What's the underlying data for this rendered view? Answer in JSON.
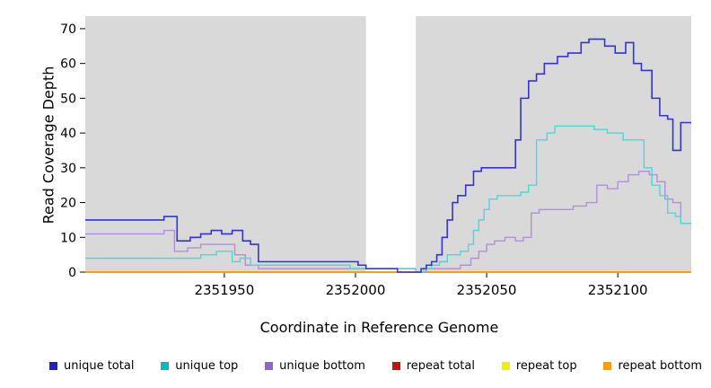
{
  "chart_data": {
    "type": "line",
    "title": "",
    "xlabel": "Coordinate in Reference Genome",
    "ylabel": "Read Coverage Depth",
    "x_range": [
      2351897,
      2352128
    ],
    "y_range": [
      0,
      73.6
    ],
    "x_ticks": [
      2351950,
      2352000,
      2352050,
      2352100
    ],
    "y_ticks": [
      0,
      10,
      20,
      30,
      40,
      50,
      60,
      70
    ],
    "plot_bg": "#d9d9d9",
    "gap_band": {
      "x0": 2352004,
      "x1": 2352023,
      "color": "#ffffff"
    },
    "grid": false,
    "legend_position": "bottom",
    "series": [
      {
        "name": "repeat total",
        "color": "#cc1111",
        "width": 1.5,
        "points": [
          [
            2351897,
            0
          ]
        ]
      },
      {
        "name": "repeat top",
        "color": "#f0f000",
        "width": 1.5,
        "points": [
          [
            2351897,
            0
          ]
        ]
      },
      {
        "name": "repeat bottom",
        "color": "#ff9d00",
        "width": 1.8,
        "points": [
          [
            2351897,
            0
          ]
        ]
      },
      {
        "name": "unique bottom",
        "color": "#b18fdc",
        "width": 1.4,
        "points": [
          [
            2351897,
            11
          ],
          [
            2351927,
            12
          ],
          [
            2351931,
            6
          ],
          [
            2351936,
            7
          ],
          [
            2351941,
            8
          ],
          [
            2351950,
            8
          ],
          [
            2351954,
            5
          ],
          [
            2351958,
            2
          ],
          [
            2351963,
            1
          ],
          [
            2352023,
            0
          ],
          [
            2352027,
            1
          ],
          [
            2352035,
            1
          ],
          [
            2352040,
            2
          ],
          [
            2352044,
            4
          ],
          [
            2352047,
            6
          ],
          [
            2352050,
            8
          ],
          [
            2352053,
            9
          ],
          [
            2352057,
            10
          ],
          [
            2352061,
            9
          ],
          [
            2352064,
            10
          ],
          [
            2352067,
            17
          ],
          [
            2352070,
            18
          ],
          [
            2352078,
            18
          ],
          [
            2352083,
            19
          ],
          [
            2352088,
            20
          ],
          [
            2352092,
            25
          ],
          [
            2352096,
            24
          ],
          [
            2352100,
            26
          ],
          [
            2352104,
            28
          ],
          [
            2352108,
            29
          ],
          [
            2352112,
            28
          ],
          [
            2352115,
            26
          ],
          [
            2352118,
            21
          ],
          [
            2352121,
            20
          ],
          [
            2352124,
            14
          ]
        ]
      },
      {
        "name": "unique top",
        "color": "#4fd6d6",
        "width": 1.4,
        "points": [
          [
            2351897,
            4
          ],
          [
            2351941,
            5
          ],
          [
            2351947,
            6
          ],
          [
            2351953,
            3
          ],
          [
            2351956,
            4
          ],
          [
            2351960,
            2
          ],
          [
            2351975,
            2
          ],
          [
            2351998,
            1
          ],
          [
            2352023,
            0
          ],
          [
            2352026,
            1
          ],
          [
            2352029,
            2
          ],
          [
            2352032,
            3
          ],
          [
            2352035,
            5
          ],
          [
            2352040,
            6
          ],
          [
            2352043,
            8
          ],
          [
            2352045,
            12
          ],
          [
            2352047,
            15
          ],
          [
            2352049,
            18
          ],
          [
            2352051,
            21
          ],
          [
            2352054,
            22
          ],
          [
            2352063,
            23
          ],
          [
            2352066,
            25
          ],
          [
            2352069,
            38
          ],
          [
            2352073,
            40
          ],
          [
            2352076,
            42
          ],
          [
            2352086,
            42
          ],
          [
            2352091,
            41
          ],
          [
            2352096,
            40
          ],
          [
            2352102,
            38
          ],
          [
            2352107,
            38
          ],
          [
            2352110,
            30
          ],
          [
            2352113,
            25
          ],
          [
            2352116,
            22
          ],
          [
            2352119,
            17
          ],
          [
            2352122,
            16
          ],
          [
            2352124,
            14
          ]
        ]
      },
      {
        "name": "unique total",
        "color": "#3333d6",
        "width": 1.6,
        "points": [
          [
            2351897,
            15
          ],
          [
            2351927,
            16
          ],
          [
            2351932,
            9
          ],
          [
            2351937,
            10
          ],
          [
            2351941,
            11
          ],
          [
            2351945,
            12
          ],
          [
            2351949,
            11
          ],
          [
            2351953,
            12
          ],
          [
            2351957,
            9
          ],
          [
            2351960,
            8
          ],
          [
            2351963,
            3
          ],
          [
            2351998,
            3
          ],
          [
            2352001,
            2
          ],
          [
            2352004,
            1
          ],
          [
            2352010,
            1
          ],
          [
            2352016,
            0
          ],
          [
            2352023,
            0
          ],
          [
            2352025,
            1
          ],
          [
            2352027,
            2
          ],
          [
            2352029,
            3
          ],
          [
            2352031,
            5
          ],
          [
            2352033,
            10
          ],
          [
            2352035,
            15
          ],
          [
            2352037,
            20
          ],
          [
            2352039,
            22
          ],
          [
            2352042,
            25
          ],
          [
            2352045,
            29
          ],
          [
            2352048,
            30
          ],
          [
            2352059,
            30
          ],
          [
            2352061,
            38
          ],
          [
            2352063,
            50
          ],
          [
            2352066,
            55
          ],
          [
            2352069,
            57
          ],
          [
            2352072,
            60
          ],
          [
            2352077,
            62
          ],
          [
            2352081,
            63
          ],
          [
            2352086,
            66
          ],
          [
            2352089,
            67
          ],
          [
            2352095,
            65
          ],
          [
            2352099,
            63
          ],
          [
            2352103,
            66
          ],
          [
            2352106,
            60
          ],
          [
            2352109,
            58
          ],
          [
            2352113,
            50
          ],
          [
            2352116,
            45
          ],
          [
            2352119,
            44
          ],
          [
            2352121,
            35
          ],
          [
            2352124,
            43
          ]
        ]
      }
    ]
  },
  "legend": {
    "items": [
      {
        "label": "unique total",
        "color": "#2222bb"
      },
      {
        "label": "unique top",
        "color": "#00bdbd"
      },
      {
        "label": "unique bottom",
        "color": "#9165cf"
      },
      {
        "label": "repeat total",
        "color": "#c21414"
      },
      {
        "label": "repeat top",
        "color": "#f0f000"
      },
      {
        "label": "repeat bottom",
        "color": "#ff9d00"
      }
    ]
  }
}
